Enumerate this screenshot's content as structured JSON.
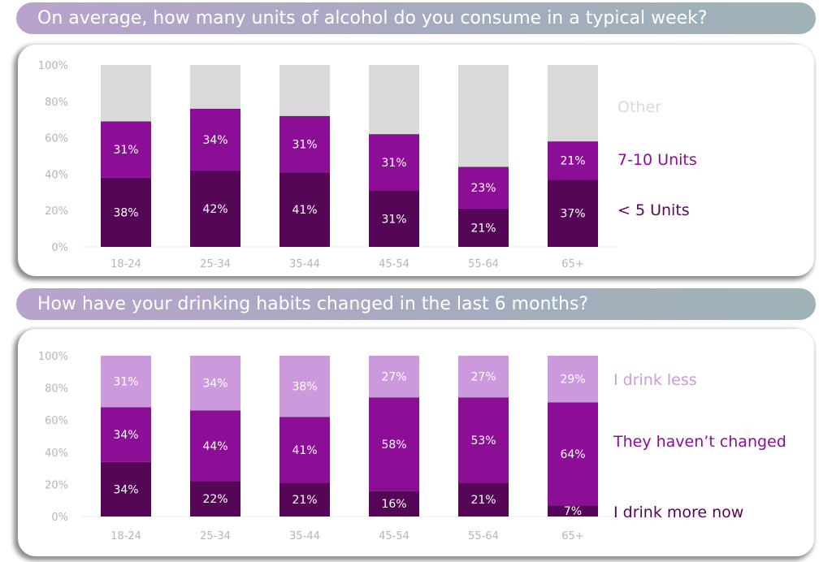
{
  "chart_data": [
    {
      "type": "bar",
      "stacked": true,
      "title": "On average, how many units of alcohol do you consume in a typical week?",
      "categories": [
        "18-24",
        "25-34",
        "35-44",
        "45-54",
        "55-64",
        "65+"
      ],
      "yticks": [
        "0%",
        "20%",
        "40%",
        "60%",
        "80%",
        "100%"
      ],
      "ylim": [
        0,
        100
      ],
      "series": [
        {
          "name": "< 5 Units",
          "color": "#560656",
          "values": [
            38,
            42,
            41,
            31,
            21,
            37
          ]
        },
        {
          "name": "7-10 Units",
          "color": "#8c0e96",
          "values": [
            31,
            34,
            31,
            31,
            23,
            21
          ]
        },
        {
          "name": "Other",
          "color": "#d9d9d9",
          "fill_to_100": true
        }
      ]
    },
    {
      "type": "bar",
      "stacked": true,
      "title": "How have your drinking habits changed in the last 6 months?",
      "categories": [
        "18-24",
        "25-34",
        "35-44",
        "45-54",
        "55-64",
        "65+"
      ],
      "yticks": [
        "0%",
        "20%",
        "40%",
        "60%",
        "80%",
        "100%"
      ],
      "ylim": [
        0,
        100
      ],
      "series": [
        {
          "name": "I drink more now",
          "color": "#560656",
          "values": [
            34,
            22,
            21,
            16,
            21,
            7
          ]
        },
        {
          "name": "They haven’t changed",
          "color": "#8c0e96",
          "values": [
            34,
            44,
            41,
            58,
            53,
            64
          ]
        },
        {
          "name": "I drink less",
          "color": "#cc99dd",
          "values": [
            31,
            34,
            38,
            27,
            27,
            29
          ]
        }
      ]
    }
  ]
}
